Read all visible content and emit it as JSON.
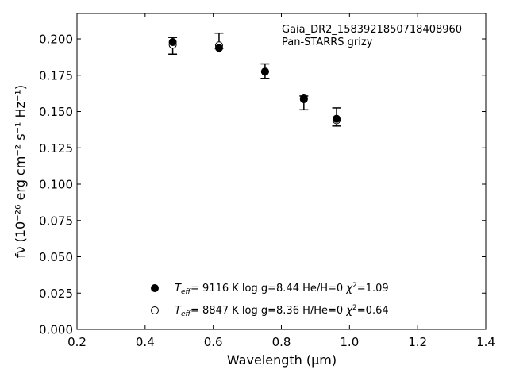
{
  "chart_data": {
    "type": "scatter",
    "title": "",
    "xlabel": "Wavelength (μm)",
    "ylabel": "fν (10⁻²⁶ erg cm⁻² s⁻¹ Hz⁻¹)",
    "xlim": [
      0.2,
      1.4
    ],
    "ylim": [
      0.0,
      0.2175
    ],
    "x_ticks": [
      "0.2",
      "0.4",
      "0.6",
      "0.8",
      "1.0",
      "1.2",
      "1.4"
    ],
    "y_ticks": [
      "0.000",
      "0.025",
      "0.050",
      "0.075",
      "0.100",
      "0.125",
      "0.150",
      "0.175",
      "0.200"
    ],
    "grid": false,
    "annotation": [
      "Gaia_DR2_1583921850718408960",
      "Pan-STARRS grizy"
    ],
    "observed": {
      "x": [
        0.481,
        0.617,
        0.752,
        0.866,
        0.962
      ],
      "y": [
        0.1955,
        0.1985,
        0.1778,
        0.1562,
        0.1465
      ],
      "err_low": [
        0.006,
        0.005,
        0.005,
        0.005,
        0.0065
      ],
      "err_high": [
        0.0055,
        0.0055,
        0.005,
        0.0045,
        0.006
      ]
    },
    "series": [
      {
        "name": "T_eff= 9116 K log g=8.44 He/H=0 χ²=1.09",
        "marker": "filled-circle",
        "x": [
          0.481,
          0.617,
          0.752,
          0.866,
          0.962
        ],
        "y": [
          0.1978,
          0.1938,
          0.1775,
          0.159,
          0.145
        ]
      },
      {
        "name": "T_eff= 8847 K log g=8.36 H/He=0 χ²=0.64",
        "marker": "open-circle",
        "x": [
          0.481,
          0.617,
          0.752,
          0.866,
          0.962
        ],
        "y": [
          0.196,
          0.1955,
          0.1775,
          0.1585,
          0.144
        ]
      }
    ],
    "legend": {
      "placement": "lower-center",
      "entries": [
        {
          "teff": "9116 K",
          "logg": "log g=8.44",
          "comp": "He/H=0",
          "chi2": "=1.09",
          "marker": "filled"
        },
        {
          "teff": "8847 K",
          "logg": "log g=8.36",
          "comp": "H/He=0",
          "chi2": "=0.64",
          "marker": "open"
        }
      ]
    },
    "colors": {
      "marker": "#000000",
      "errorbar": "#000000",
      "axes": "#000000"
    }
  }
}
